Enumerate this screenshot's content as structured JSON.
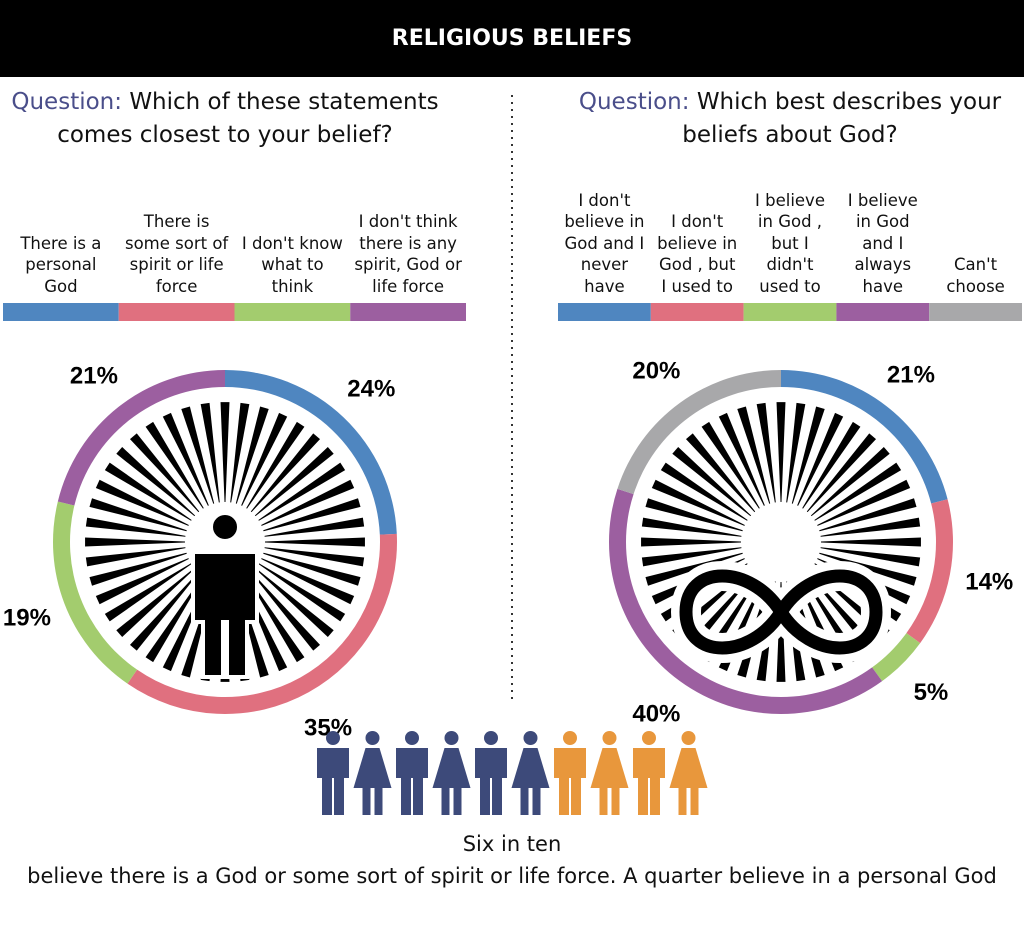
{
  "title": "RELIGIOUS BELIEFS",
  "chart_data": [
    {
      "type": "donut",
      "question_label": "Question:",
      "question": "Which of these statements comes closest to your belief?",
      "categories": [
        "There is a personal God",
        "There is some sort of spirit or life force",
        "I don't know what to think",
        "I don't think there is any spirit, God or life force"
      ],
      "values": [
        24,
        35,
        19,
        21
      ],
      "value_labels": [
        "24%",
        "35%",
        "19%",
        "21%"
      ],
      "colors": [
        "#4f86c0",
        "#e0707f",
        "#a3cc6e",
        "#9c5fa0"
      ]
    },
    {
      "type": "donut",
      "question_label": "Question:",
      "question": "Which best describes your beliefs about God?",
      "categories": [
        "I don't believe in God and I never have",
        "I don't believe in God , but I used to",
        "I believe in God , but I didn't used to",
        "I believe in God and I always have",
        "Can't choose"
      ],
      "values": [
        21,
        14,
        5,
        40,
        20
      ],
      "value_labels": [
        "21%",
        "14%",
        "5%",
        "40%",
        "20%"
      ],
      "colors": [
        "#4f86c0",
        "#e0707f",
        "#a3cc6e",
        "#9c5fa0",
        "#a8a8aa"
      ]
    }
  ],
  "footer": {
    "headline": "Six in ten",
    "text": "believe there is a God or some sort of spirit or life force. A quarter believe in a personal God"
  }
}
